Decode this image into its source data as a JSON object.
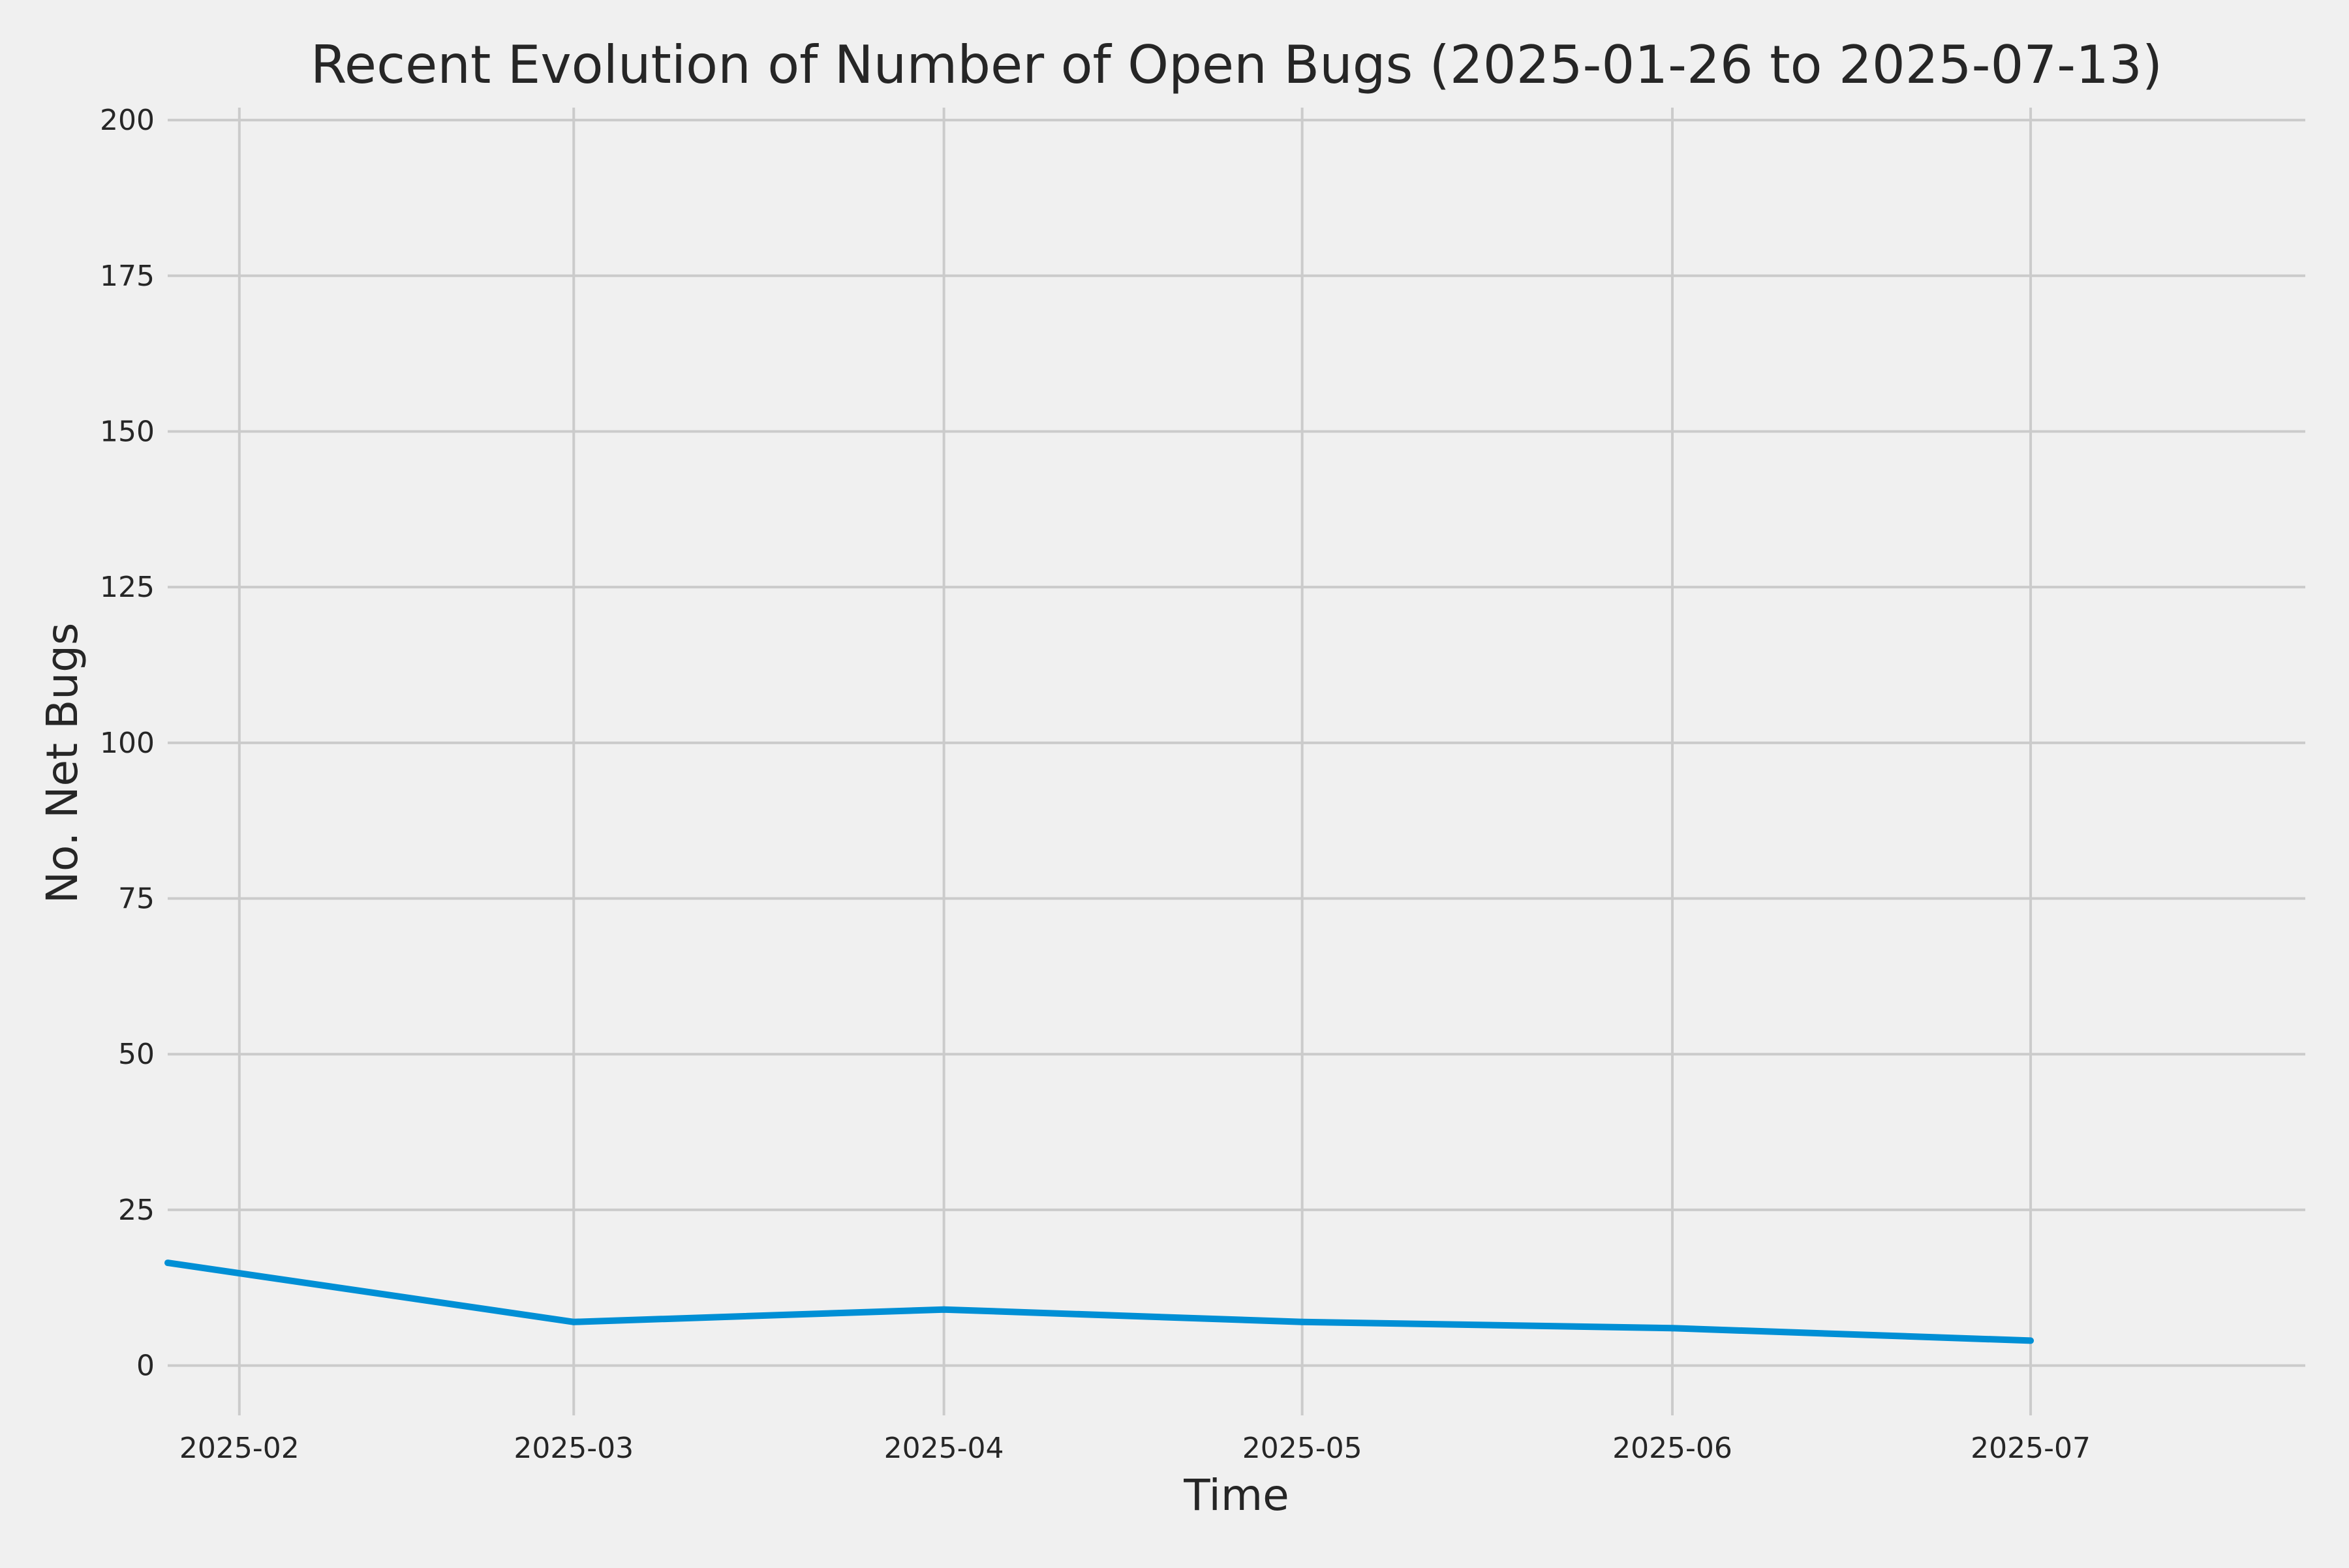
{
  "chart_data": {
    "type": "line",
    "title": "Recent Evolution of Number of Open Bugs (2025-01-26 to 2025-07-13)",
    "xlabel": "Time",
    "ylabel": "No. Net Bugs",
    "x_axis_type": "date",
    "xlim": [
      "2025-01-26",
      "2025-07-24"
    ],
    "ylim": [
      -8,
      202
    ],
    "x_ticks": [
      {
        "value": "2025-02-01",
        "label": "2025-02"
      },
      {
        "value": "2025-03-01",
        "label": "2025-03"
      },
      {
        "value": "2025-04-01",
        "label": "2025-04"
      },
      {
        "value": "2025-05-01",
        "label": "2025-05"
      },
      {
        "value": "2025-06-01",
        "label": "2025-06"
      },
      {
        "value": "2025-07-01",
        "label": "2025-07"
      }
    ],
    "y_ticks": [
      0,
      25,
      50,
      75,
      100,
      125,
      150,
      175,
      200
    ],
    "grid": true,
    "legend": "none",
    "series": [
      {
        "color": "#008fd5",
        "x": [
          "2025-01-26",
          "2025-03-01",
          "2025-04-01",
          "2025-05-01",
          "2025-06-01",
          "2025-07-01"
        ],
        "values": [
          16.5,
          7,
          9,
          7,
          6,
          4
        ]
      }
    ]
  }
}
